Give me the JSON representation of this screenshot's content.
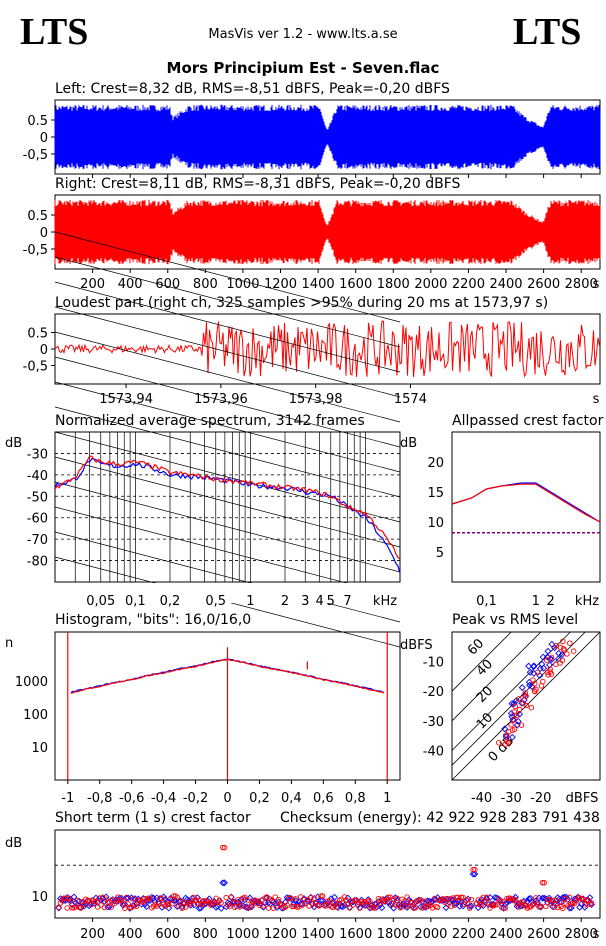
{
  "header": {
    "logo_left": "LTS",
    "logo_right": "LTS",
    "app_title": "MasVis ver 1.2 - www.lts.a.se",
    "track_title": "Mors Principium Est - Seven.flac"
  },
  "colors": {
    "left": "#0000ff",
    "right": "#ff0000",
    "axis": "#000000"
  },
  "panels": {
    "left_label": "Left: Crest=8,32 dB, RMS=-8,51 dBFS, Peak=-0,20 dBFS",
    "right_label": "Right: Crest=8,11 dB, RMS=-8,31 dBFS, Peak=-0,20 dBFS",
    "loudest_label": "Loudest part (right ch, 325 samples >95% during 20 ms at 1573,97 s)",
    "spectrum_label": "Normalized average spectrum, 3142 frames",
    "allpass_label": "Allpassed crest factor",
    "histogram_label": "Histogram, \"bits\": 16,0/16,0",
    "peakrms_label": "Peak vs RMS level",
    "crest_label": "Short term (1 s) crest factor",
    "checksum_label": "Checksum (energy):  42 922 928 283 791 438"
  },
  "chart_data": [
    {
      "type": "area",
      "id": "left-waveform",
      "title": "Left: Crest=8,32 dB, RMS=-8,51 dBFS, Peak=-0,20 dBFS",
      "ylim": [
        -1,
        1
      ],
      "yticks": [
        "0.5",
        "0",
        "-0,5"
      ],
      "series": [
        {
          "name": "Left",
          "x": [
            0,
            40,
            600,
            620,
            700,
            1200,
            1390,
            1415,
            1430,
            1480,
            2400,
            2470,
            2560,
            2600,
            2860
          ],
          "envelope": [
            0.95,
            0.95,
            0.95,
            0.6,
            0.95,
            0.95,
            0.95,
            0.4,
            0.2,
            0.95,
            0.95,
            0.6,
            0.3,
            0.95,
            0.95
          ]
        }
      ]
    },
    {
      "type": "area",
      "id": "right-waveform",
      "title": "Right: Crest=8,11 dB, RMS=-8,31 dBFS, Peak=-0,20 dBFS",
      "ylim": [
        -1,
        1
      ],
      "yticks": [
        "0.5",
        "0",
        "-0,5"
      ],
      "xlabel": "s",
      "xticks": [
        "200",
        "400",
        "600",
        "800",
        "1000",
        "1200",
        "1400",
        "1600",
        "1800",
        "2000",
        "2200",
        "2400",
        "2600",
        "2800"
      ],
      "series": [
        {
          "name": "Right",
          "x": [
            0,
            40,
            600,
            620,
            700,
            1200,
            1390,
            1415,
            1430,
            1480,
            2400,
            2470,
            2560,
            2600,
            2860
          ],
          "envelope": [
            0.95,
            0.95,
            0.95,
            0.6,
            0.95,
            0.95,
            0.95,
            0.4,
            0.2,
            0.95,
            0.95,
            0.6,
            0.3,
            0.95,
            0.95
          ]
        }
      ]
    },
    {
      "type": "line",
      "id": "loudest-part",
      "title": "Loudest part (right ch, 325 samples >95% during 20 ms at 1573,97 s)",
      "ylim": [
        -1,
        1
      ],
      "yticks": [
        "0.5",
        "0",
        "-0,5"
      ],
      "xlabel": "s",
      "xticks": [
        "1573,94",
        "1573,96",
        "1573,98",
        "1574"
      ],
      "series": [
        {
          "name": "Right",
          "x_range": [
            1573.925,
            1574.04
          ],
          "quiet_until": 1573.956,
          "quiet_amplitude": 0.12,
          "loud_amplitude": 0.85
        }
      ]
    },
    {
      "type": "line",
      "id": "spectrum",
      "title": "Normalized average spectrum, 3142 frames",
      "ylabel": "dB",
      "xlabel": "kHz",
      "ylim": [
        -90,
        -20
      ],
      "yticks": [
        "-30",
        "-40",
        "-50",
        "-60",
        "-70",
        "-80"
      ],
      "xticks": [
        "0,05",
        "0,1",
        "0,2",
        "0,5",
        "1",
        "2",
        "3",
        "4",
        "5",
        "7"
      ],
      "series": [
        {
          "name": "Left",
          "x": [
            0.02,
            0.03,
            0.04,
            0.05,
            0.07,
            0.1,
            0.2,
            0.5,
            1,
            2,
            3,
            5,
            7,
            10,
            14,
            20
          ],
          "y": [
            -45,
            -42,
            -33,
            -35,
            -36,
            -35,
            -40,
            -42,
            -45,
            -46,
            -48,
            -50,
            -55,
            -60,
            -70,
            -85
          ]
        },
        {
          "name": "Right",
          "x": [
            0.02,
            0.03,
            0.04,
            0.05,
            0.07,
            0.1,
            0.2,
            0.5,
            1,
            2,
            3,
            5,
            7,
            10,
            14,
            20
          ],
          "y": [
            -46,
            -41,
            -32,
            -34,
            -35,
            -34,
            -39,
            -42,
            -44,
            -46,
            -47,
            -50,
            -55,
            -58,
            -67,
            -80
          ]
        }
      ]
    },
    {
      "type": "line",
      "id": "allpassed-crest",
      "title": "Allpassed crest factor",
      "ylabel": "dB",
      "xlabel": "kHz",
      "ylim": [
        0,
        25
      ],
      "yticks": [
        "20",
        "15",
        "10",
        "5"
      ],
      "xticks": [
        "0,1",
        "1",
        "2"
      ],
      "reference_line": 8.2,
      "series": [
        {
          "name": "Left",
          "x": [
            0.02,
            0.05,
            0.1,
            0.2,
            0.5,
            1,
            2,
            5,
            10,
            20
          ],
          "y": [
            13,
            14,
            15.5,
            16,
            16.5,
            16.5,
            15,
            13,
            11.5,
            10
          ]
        },
        {
          "name": "Right",
          "x": [
            0.02,
            0.05,
            0.1,
            0.2,
            0.5,
            1,
            2,
            5,
            10,
            20
          ],
          "y": [
            13,
            14,
            15.5,
            16,
            16.3,
            16.3,
            14.8,
            12.8,
            11.3,
            10
          ]
        }
      ]
    },
    {
      "type": "line",
      "id": "histogram",
      "title": "Histogram, \"bits\": 16,0/16,0",
      "ylabel": "n",
      "ylim_log": [
        1,
        30000
      ],
      "yticks": [
        "1000",
        "100",
        "10"
      ],
      "xticks": [
        "-1",
        "-0,8",
        "-0,6",
        "-0,4",
        "-0,2",
        "0",
        "0,2",
        "0,4",
        "0,6",
        "0,8",
        "1"
      ],
      "series": [
        {
          "name": "Left",
          "x": [
            -0.98,
            -0.8,
            -0.6,
            -0.4,
            -0.2,
            0,
            0.2,
            0.4,
            0.6,
            0.8,
            0.98
          ],
          "y": [
            450,
            700,
            1100,
            1800,
            2800,
            4500,
            2800,
            1800,
            1100,
            700,
            450
          ]
        },
        {
          "name": "Right",
          "x": [
            -0.98,
            -0.8,
            -0.6,
            -0.4,
            -0.2,
            0,
            0.2,
            0.4,
            0.6,
            0.8,
            0.98
          ],
          "y": [
            430,
            680,
            1080,
            1750,
            2700,
            4400,
            2700,
            1750,
            1080,
            680,
            430
          ]
        }
      ]
    },
    {
      "type": "scatter",
      "id": "peak-vs-rms",
      "title": "Peak vs RMS level",
      "ylabel": "dBFS",
      "xlabel": "dBFS",
      "xlim": [
        -50,
        0
      ],
      "ylim": [
        -50,
        0
      ],
      "xticks": [
        "-40",
        "-30",
        "-20"
      ],
      "yticks": [
        "-10",
        "-20",
        "-30",
        "-40"
      ],
      "diagonal_labels": [
        "60",
        "40",
        "20",
        "10",
        "0 dB"
      ],
      "series": [
        {
          "name": "Left",
          "x": [
            -32,
            -30,
            -28,
            -26,
            -24,
            -22,
            -20,
            -18,
            -16,
            -14
          ],
          "y": [
            -35,
            -30,
            -26,
            -22,
            -18,
            -14,
            -12,
            -10,
            -8,
            -6
          ]
        },
        {
          "name": "Right",
          "x": [
            -33,
            -31,
            -29,
            -27,
            -25,
            -23,
            -21,
            -19,
            -17,
            -15,
            -13,
            -11
          ],
          "y": [
            -38,
            -34,
            -30,
            -27,
            -24,
            -21,
            -18,
            -15,
            -12,
            -9,
            -7,
            -5
          ]
        }
      ]
    },
    {
      "type": "scatter",
      "id": "short-term-crest",
      "title": "Short term (1 s) crest factor",
      "ylabel": "dB",
      "xlabel": "s",
      "ylim": [
        5,
        25
      ],
      "yticks": [
        "10"
      ],
      "reference_line": 17,
      "xticks": [
        "200",
        "400",
        "600",
        "800",
        "1000",
        "1200",
        "1400",
        "1600",
        "1800",
        "2000",
        "2200",
        "2400",
        "2600",
        "2800"
      ],
      "series": [
        {
          "name": "Left",
          "x": [
            50,
            200,
            350,
            500,
            640,
            900,
            1100,
            1250,
            1420,
            1600,
            1820,
            2050,
            2230,
            2420,
            2600,
            2830
          ],
          "y": [
            9,
            9,
            9.5,
            9,
            9,
            13,
            9,
            9.5,
            9,
            9,
            9,
            9,
            15,
            9,
            9.5,
            9
          ]
        },
        {
          "name": "Right",
          "x": [
            50,
            200,
            350,
            500,
            640,
            900,
            1100,
            1250,
            1420,
            1600,
            1820,
            2050,
            2230,
            2420,
            2600,
            2830
          ],
          "y": [
            9.5,
            9,
            9,
            9.5,
            10,
            21,
            9,
            9.5,
            10,
            9,
            9.5,
            9,
            16,
            9.5,
            13,
            9
          ]
        }
      ]
    }
  ]
}
